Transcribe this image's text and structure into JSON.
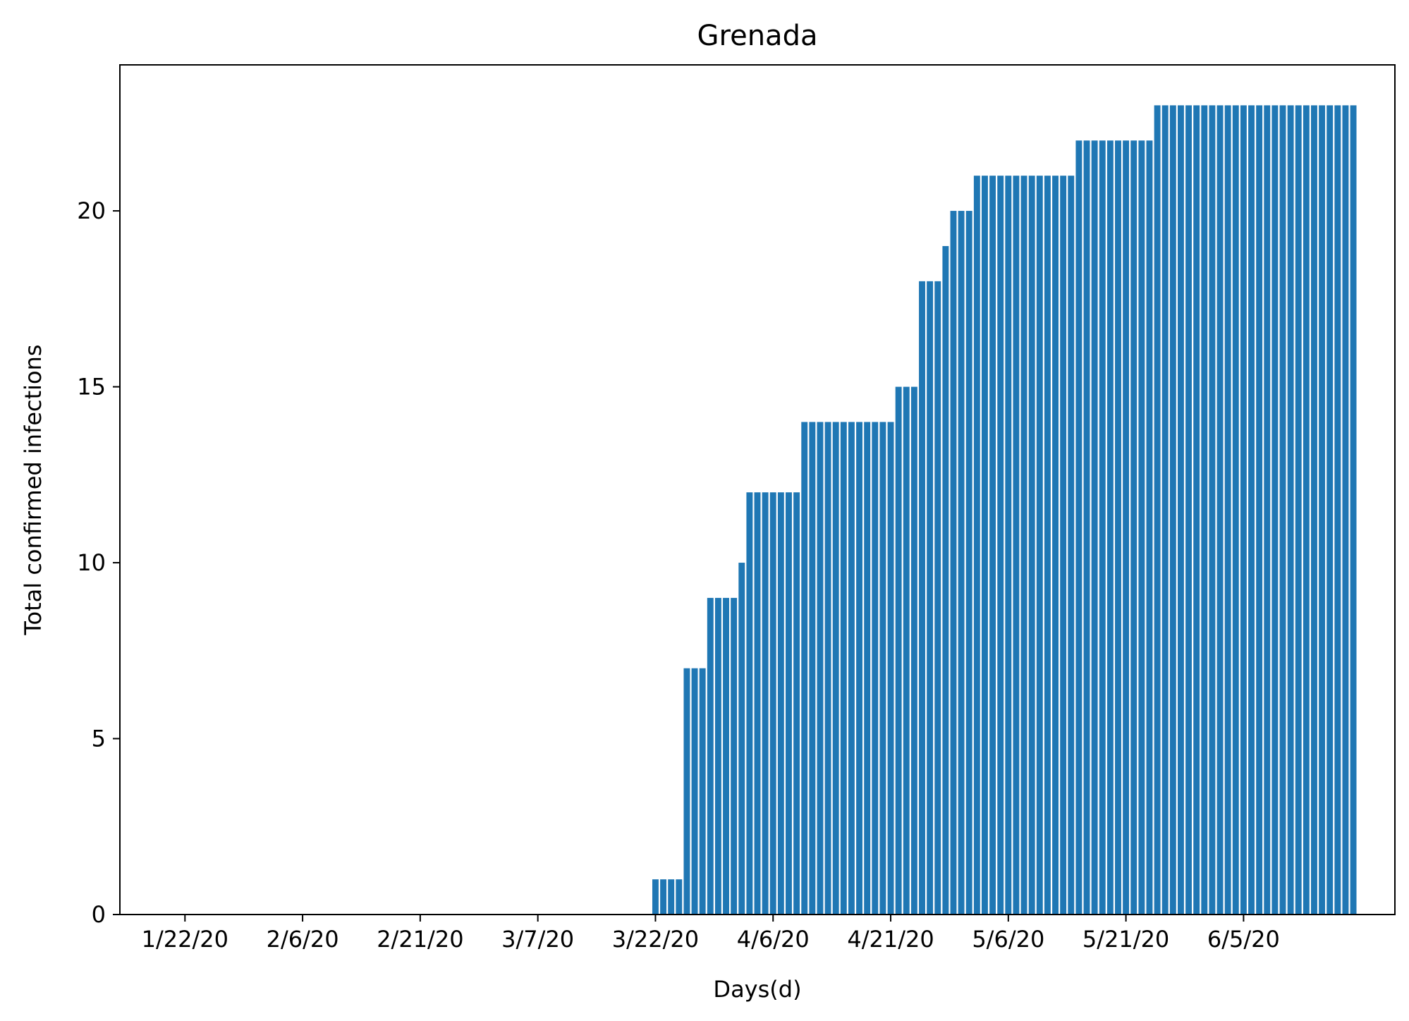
{
  "chart_data": {
    "type": "bar",
    "title": "Grenada",
    "xlabel": "Days(d)",
    "ylabel": "Total confirmed infections",
    "start_date": "1/22/20",
    "x_tick_labels": [
      "1/22/20",
      "2/6/20",
      "2/21/20",
      "3/7/20",
      "3/22/20",
      "4/6/20",
      "4/21/20",
      "5/6/20",
      "5/21/20",
      "6/5/20"
    ],
    "y_ticks": [
      0,
      5,
      10,
      15,
      20
    ],
    "ylim": [
      0,
      24.15
    ],
    "xlim": [
      -8.3,
      154.3
    ],
    "grid": false,
    "bar_color": "#1f77b4",
    "values": [
      0,
      0,
      0,
      0,
      0,
      0,
      0,
      0,
      0,
      0,
      0,
      0,
      0,
      0,
      0,
      0,
      0,
      0,
      0,
      0,
      0,
      0,
      0,
      0,
      0,
      0,
      0,
      0,
      0,
      0,
      0,
      0,
      0,
      0,
      0,
      0,
      0,
      0,
      0,
      0,
      0,
      0,
      0,
      0,
      0,
      0,
      0,
      0,
      0,
      0,
      0,
      0,
      0,
      0,
      0,
      0,
      0,
      0,
      0,
      0,
      1,
      1,
      1,
      1,
      7,
      7,
      7,
      9,
      9,
      9,
      9,
      10,
      12,
      12,
      12,
      12,
      12,
      12,
      12,
      14,
      14,
      14,
      14,
      14,
      14,
      14,
      14,
      14,
      14,
      14,
      14,
      15,
      15,
      15,
      18,
      18,
      18,
      19,
      20,
      20,
      20,
      21,
      21,
      21,
      21,
      21,
      21,
      21,
      21,
      21,
      21,
      21,
      21,
      21,
      22,
      22,
      22,
      22,
      22,
      22,
      22,
      22,
      22,
      22,
      23,
      23,
      23,
      23,
      23,
      23,
      23,
      23,
      23,
      23,
      23,
      23,
      23,
      23,
      23,
      23,
      23,
      23,
      23,
      23,
      23,
      23,
      23,
      23,
      23,
      23
    ]
  }
}
